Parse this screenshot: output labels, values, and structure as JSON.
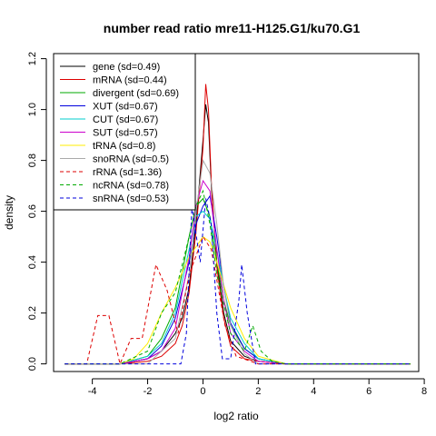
{
  "chart_data": {
    "type": "line",
    "title": "number read ratio mre11-H125.G1/ku70.G1",
    "xlabel": "log2 ratio",
    "ylabel": "density",
    "xlim": [
      -5.4,
      7.8
    ],
    "ylim": [
      -0.03,
      1.22
    ],
    "xticks": [
      -4,
      -2,
      0,
      2,
      4,
      6,
      8
    ],
    "yticks": [
      0.0,
      0.2,
      0.4,
      0.6,
      0.8,
      1.0,
      1.2
    ],
    "xtick_labels": [
      "-4",
      "-2",
      "0",
      "2",
      "4",
      "6",
      "8"
    ],
    "ytick_labels": [
      "0.0",
      "0.2",
      "0.4",
      "0.6",
      "0.8",
      "1.0",
      "1.2"
    ],
    "grid": false,
    "legend_position": "top-left",
    "series": [
      {
        "name": "gene (sd=0.49)",
        "color": "#000000",
        "dash": "solid",
        "x": [
          -5,
          -3,
          -2,
          -1.5,
          -1,
          -0.75,
          -0.5,
          -0.25,
          0,
          0.1,
          0.2,
          0.3,
          0.5,
          0.75,
          1,
          1.5,
          2,
          3,
          4,
          7.5
        ],
        "y": [
          0,
          0,
          0.02,
          0.05,
          0.12,
          0.18,
          0.3,
          0.55,
          0.88,
          1.02,
          0.95,
          0.7,
          0.4,
          0.2,
          0.09,
          0.03,
          0.01,
          0,
          0,
          0
        ]
      },
      {
        "name": "mRNA (sd=0.44)",
        "color": "#dd0000",
        "dash": "solid",
        "x": [
          -5,
          -3,
          -2,
          -1.5,
          -1,
          -0.75,
          -0.5,
          -0.25,
          0,
          0.1,
          0.2,
          0.3,
          0.5,
          0.75,
          1,
          1.5,
          2,
          3,
          4,
          7.5
        ],
        "y": [
          0,
          0,
          0.01,
          0.03,
          0.08,
          0.15,
          0.28,
          0.52,
          0.85,
          1.1,
          1.0,
          0.72,
          0.38,
          0.18,
          0.07,
          0.02,
          0.01,
          0,
          0,
          0
        ]
      },
      {
        "name": "divergent (sd=0.69)",
        "color": "#00aa00",
        "dash": "solid",
        "x": [
          -5,
          -3,
          -2,
          -1.5,
          -1,
          -0.5,
          -0.25,
          0,
          0.25,
          0.5,
          0.75,
          1,
          1.5,
          2,
          3,
          7.5
        ],
        "y": [
          0,
          0,
          0.03,
          0.1,
          0.22,
          0.5,
          0.62,
          0.65,
          0.58,
          0.4,
          0.25,
          0.15,
          0.06,
          0.02,
          0,
          0
        ]
      },
      {
        "name": "XUT (sd=0.67)",
        "color": "#0000dd",
        "dash": "solid",
        "x": [
          -5,
          -3,
          -2,
          -1.5,
          -1,
          -0.5,
          -0.25,
          0,
          0.25,
          0.5,
          0.75,
          1,
          1.5,
          2,
          3,
          7.5
        ],
        "y": [
          0,
          0,
          0.02,
          0.07,
          0.18,
          0.4,
          0.55,
          0.62,
          0.66,
          0.5,
          0.3,
          0.16,
          0.06,
          0.02,
          0,
          0
        ]
      },
      {
        "name": "CUT (sd=0.67)",
        "color": "#00cccc",
        "dash": "solid",
        "x": [
          -5,
          -3,
          -2,
          -1.5,
          -1,
          -0.5,
          -0.25,
          0,
          0.25,
          0.5,
          0.75,
          1,
          1.5,
          2,
          3,
          7.5
        ],
        "y": [
          0,
          0,
          0.03,
          0.08,
          0.2,
          0.45,
          0.58,
          0.6,
          0.57,
          0.45,
          0.3,
          0.18,
          0.08,
          0.02,
          0,
          0
        ]
      },
      {
        "name": "SUT (sd=0.57)",
        "color": "#cc00cc",
        "dash": "solid",
        "x": [
          -5,
          -3,
          -2,
          -1.5,
          -1,
          -0.5,
          -0.25,
          0,
          0.25,
          0.5,
          0.75,
          1,
          1.5,
          2,
          3,
          7.5
        ],
        "y": [
          0,
          0,
          0.02,
          0.05,
          0.14,
          0.42,
          0.62,
          0.72,
          0.68,
          0.45,
          0.25,
          0.12,
          0.05,
          0.01,
          0,
          0
        ]
      },
      {
        "name": "tRNA (sd=0.8)",
        "color": "#ffee00",
        "dash": "solid",
        "x": [
          -5,
          -3,
          -2.5,
          -2,
          -1.5,
          -1,
          -0.5,
          0,
          0.25,
          0.5,
          1,
          1.5,
          2,
          3,
          7.5
        ],
        "y": [
          0,
          0,
          0.02,
          0.08,
          0.2,
          0.3,
          0.42,
          0.5,
          0.48,
          0.4,
          0.22,
          0.1,
          0.03,
          0,
          0
        ]
      },
      {
        "name": "snoRNA (sd=0.5)",
        "color": "#aaaaaa",
        "dash": "solid",
        "x": [
          -5,
          -2,
          -1,
          -0.5,
          -0.25,
          0,
          0.25,
          0.5,
          0.75,
          1,
          1.5,
          2,
          7.5
        ],
        "y": [
          0,
          0,
          0.1,
          0.35,
          0.6,
          0.8,
          0.75,
          0.55,
          0.3,
          0.15,
          0.04,
          0,
          0
        ]
      },
      {
        "name": "rRNA (sd=1.36)",
        "color": "#dd0000",
        "dash": "dashed",
        "x": [
          -5,
          -4.2,
          -3.8,
          -3.4,
          -3.0,
          -2.6,
          -2.2,
          -1.7,
          -1.3,
          -0.9,
          -0.5,
          0,
          0.3,
          0.8,
          1.2,
          2,
          7.5
        ],
        "y": [
          0,
          0,
          0.19,
          0.19,
          0,
          0.1,
          0.1,
          0.39,
          0.29,
          0.12,
          0.35,
          0.5,
          0.45,
          0.15,
          0.03,
          0,
          0
        ]
      },
      {
        "name": "ncRNA (sd=0.78)",
        "color": "#00aa00",
        "dash": "dashed",
        "x": [
          -5,
          -3,
          -2,
          -1.5,
          -1,
          -0.5,
          -0.25,
          0,
          0.25,
          0.5,
          1,
          1.5,
          1.8,
          2.1,
          2.5,
          3,
          7.5
        ],
        "y": [
          0,
          0,
          0.05,
          0.2,
          0.28,
          0.5,
          0.62,
          0.68,
          0.55,
          0.35,
          0.12,
          0.05,
          0.15,
          0.05,
          0.01,
          0,
          0
        ]
      },
      {
        "name": "snRNA (sd=0.53)",
        "color": "#0000dd",
        "dash": "dashed",
        "x": [
          -5,
          -0.8,
          -0.6,
          -0.4,
          -0.1,
          0.1,
          0.3,
          0.5,
          0.7,
          1.0,
          1.3,
          1.4,
          1.6,
          1.9,
          2.2,
          7.5
        ],
        "y": [
          0,
          0,
          0.12,
          0.62,
          0.4,
          0.65,
          0.55,
          0.2,
          0.02,
          0.02,
          0.25,
          0.39,
          0.2,
          0,
          0,
          0
        ]
      }
    ]
  }
}
